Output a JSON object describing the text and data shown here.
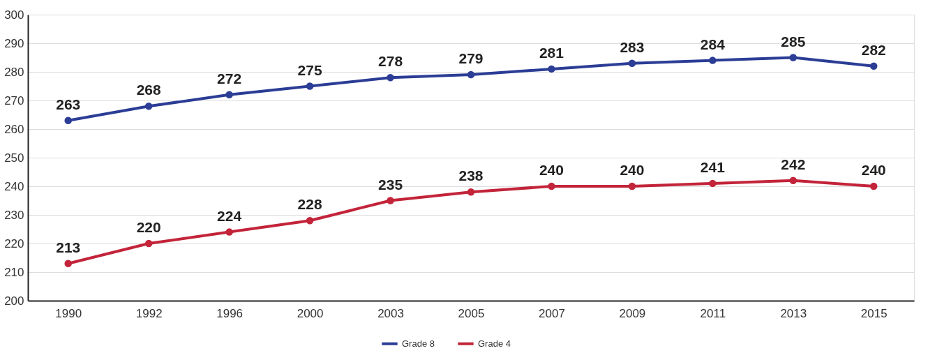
{
  "chart_data": {
    "type": "line",
    "categories": [
      "1990",
      "1992",
      "1996",
      "2000",
      "2003",
      "2005",
      "2007",
      "2009",
      "2011",
      "2013",
      "2015"
    ],
    "series": [
      {
        "name": "Grade 8",
        "color": "#2b3d95",
        "values": [
          263,
          268,
          272,
          275,
          278,
          279,
          281,
          283,
          284,
          285,
          282
        ]
      },
      {
        "name": "Grade 4",
        "color": "#c3243a",
        "values": [
          213,
          220,
          224,
          228,
          235,
          238,
          240,
          240,
          241,
          242,
          240
        ]
      }
    ],
    "ylim": [
      200,
      300
    ],
    "yticks": [
      200,
      210,
      220,
      230,
      240,
      250,
      260,
      270,
      280,
      290,
      300
    ],
    "grid": "y",
    "legend": "bottom",
    "marker": "circle",
    "line_style": "solid",
    "data_labels": true
  }
}
